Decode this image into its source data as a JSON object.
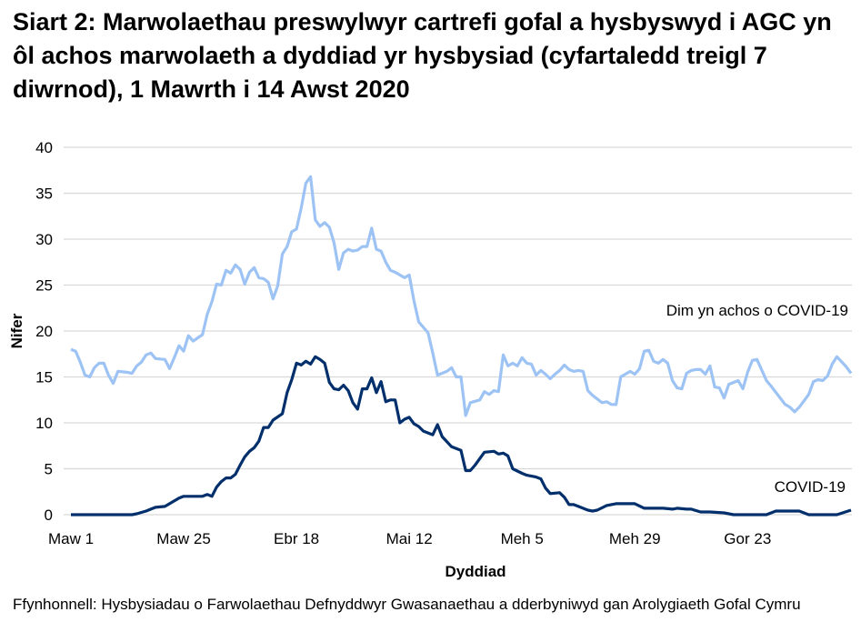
{
  "title": "Siart 2: Marwolaethau preswylwyr cartrefi gofal a hysbyswyd i AGC yn ôl achos marwolaeth a dyddiad yr hysbysiad (cyfartaledd treigl 7 diwrnod), 1 Mawrth i 14 Awst 2020",
  "source": "Ffynhonnell: Hysbysiadau o Farwolaethau Defnyddwyr Gwasanaethau a dderbyniwyd gan Arolygiaeth Gofal Cymru",
  "chart_data": {
    "type": "line",
    "title": "Siart 2: Marwolaethau preswylwyr cartrefi gofal a hysbyswyd i AGC yn ôl achos marwolaeth a dyddiad yr hysbysiad (cyfartaledd treigl 7 diwrnod), 1 Mawrth i 14 Awst 2020",
    "xlabel": "Dyddiad",
    "ylabel": "Nifer",
    "xlim": [
      "2020-03-01",
      "2020-08-14"
    ],
    "ylim": [
      0,
      40
    ],
    "yticks": [
      0,
      5,
      10,
      15,
      20,
      25,
      30,
      35,
      40
    ],
    "xticks": [
      {
        "date": "2020-03-01",
        "label": "Maw 1"
      },
      {
        "date": "2020-03-25",
        "label": "Maw 25"
      },
      {
        "date": "2020-04-18",
        "label": "Ebr 18"
      },
      {
        "date": "2020-05-12",
        "label": "Mai 12"
      },
      {
        "date": "2020-06-05",
        "label": "Meh 5"
      },
      {
        "date": "2020-06-29",
        "label": "Meh 29"
      },
      {
        "date": "2020-07-23",
        "label": "Gor 23"
      }
    ],
    "grid": "horizontal",
    "legend": "inline labels at right end of lines",
    "series": [
      {
        "name": "Dim yn achos o COVID-19",
        "color": "#9dc3f5",
        "points": [
          [
            "2020-03-01",
            18.0
          ],
          [
            "2020-03-02",
            17.8
          ],
          [
            "2020-03-03",
            16.6
          ],
          [
            "2020-03-04",
            15.2
          ],
          [
            "2020-03-05",
            15.0
          ],
          [
            "2020-03-06",
            16.0
          ],
          [
            "2020-03-07",
            16.5
          ],
          [
            "2020-03-08",
            16.5
          ],
          [
            "2020-03-09",
            15.2
          ],
          [
            "2020-03-10",
            14.3
          ],
          [
            "2020-03-11",
            15.6
          ],
          [
            "2020-03-13",
            15.5
          ],
          [
            "2020-03-14",
            15.4
          ],
          [
            "2020-03-15",
            16.2
          ],
          [
            "2020-03-16",
            16.6
          ],
          [
            "2020-03-17",
            17.4
          ],
          [
            "2020-03-18",
            17.6
          ],
          [
            "2020-03-19",
            17.0
          ],
          [
            "2020-03-21",
            16.9
          ],
          [
            "2020-03-22",
            15.9
          ],
          [
            "2020-03-23",
            17.1
          ],
          [
            "2020-03-24",
            18.4
          ],
          [
            "2020-03-25",
            17.8
          ],
          [
            "2020-03-26",
            19.5
          ],
          [
            "2020-03-27",
            18.9
          ],
          [
            "2020-03-29",
            19.6
          ],
          [
            "2020-03-30",
            21.8
          ],
          [
            "2020-03-31",
            23.2
          ],
          [
            "2020-04-01",
            25.1
          ],
          [
            "2020-04-02",
            25.0
          ],
          [
            "2020-04-03",
            26.6
          ],
          [
            "2020-04-04",
            26.3
          ],
          [
            "2020-04-05",
            27.2
          ],
          [
            "2020-04-06",
            26.7
          ],
          [
            "2020-04-07",
            25.1
          ],
          [
            "2020-04-08",
            26.4
          ],
          [
            "2020-04-09",
            26.9
          ],
          [
            "2020-04-10",
            25.8
          ],
          [
            "2020-04-11",
            25.7
          ],
          [
            "2020-04-12",
            25.3
          ],
          [
            "2020-04-13",
            23.5
          ],
          [
            "2020-04-14",
            24.9
          ],
          [
            "2020-04-15",
            28.4
          ],
          [
            "2020-04-16",
            29.2
          ],
          [
            "2020-04-17",
            30.8
          ],
          [
            "2020-04-18",
            31.1
          ],
          [
            "2020-04-19",
            33.4
          ],
          [
            "2020-04-20",
            36.1
          ],
          [
            "2020-04-21",
            36.8
          ],
          [
            "2020-04-22",
            32.1
          ],
          [
            "2020-04-23",
            31.4
          ],
          [
            "2020-04-24",
            31.8
          ],
          [
            "2020-04-25",
            31.3
          ],
          [
            "2020-04-26",
            29.6
          ],
          [
            "2020-04-27",
            26.7
          ],
          [
            "2020-04-28",
            28.5
          ],
          [
            "2020-04-29",
            28.9
          ],
          [
            "2020-04-30",
            28.7
          ],
          [
            "2020-05-01",
            28.8
          ],
          [
            "2020-05-02",
            29.2
          ],
          [
            "2020-05-03",
            29.2
          ],
          [
            "2020-05-04",
            31.2
          ],
          [
            "2020-05-05",
            28.9
          ],
          [
            "2020-05-06",
            28.7
          ],
          [
            "2020-05-07",
            27.5
          ],
          [
            "2020-05-08",
            26.6
          ],
          [
            "2020-05-09",
            26.4
          ],
          [
            "2020-05-11",
            25.8
          ],
          [
            "2020-05-12",
            26.1
          ],
          [
            "2020-05-13",
            23.3
          ],
          [
            "2020-05-14",
            21.0
          ],
          [
            "2020-05-15",
            20.4
          ],
          [
            "2020-05-16",
            19.8
          ],
          [
            "2020-05-17",
            17.6
          ],
          [
            "2020-05-18",
            15.2
          ],
          [
            "2020-05-20",
            15.6
          ],
          [
            "2020-05-21",
            16.0
          ],
          [
            "2020-05-22",
            15.0
          ],
          [
            "2020-05-23",
            15.0
          ],
          [
            "2020-05-24",
            10.8
          ],
          [
            "2020-05-25",
            12.2
          ],
          [
            "2020-05-27",
            12.5
          ],
          [
            "2020-05-28",
            13.4
          ],
          [
            "2020-05-29",
            13.1
          ],
          [
            "2020-05-30",
            13.5
          ],
          [
            "2020-05-31",
            13.4
          ],
          [
            "2020-06-01",
            17.4
          ],
          [
            "2020-06-02",
            16.2
          ],
          [
            "2020-06-03",
            16.5
          ],
          [
            "2020-06-04",
            16.2
          ],
          [
            "2020-06-05",
            17.1
          ],
          [
            "2020-06-06",
            16.5
          ],
          [
            "2020-06-07",
            16.4
          ],
          [
            "2020-06-08",
            15.2
          ],
          [
            "2020-06-09",
            15.7
          ],
          [
            "2020-06-10",
            15.3
          ],
          [
            "2020-06-11",
            14.8
          ],
          [
            "2020-06-12",
            15.3
          ],
          [
            "2020-06-13",
            15.7
          ],
          [
            "2020-06-14",
            16.3
          ],
          [
            "2020-06-15",
            15.8
          ],
          [
            "2020-06-16",
            15.6
          ],
          [
            "2020-06-17",
            15.7
          ],
          [
            "2020-06-18",
            15.6
          ],
          [
            "2020-06-19",
            13.5
          ],
          [
            "2020-06-20",
            13.0
          ],
          [
            "2020-06-22",
            12.2
          ],
          [
            "2020-06-23",
            12.3
          ],
          [
            "2020-06-24",
            12.0
          ],
          [
            "2020-06-25",
            12.0
          ],
          [
            "2020-06-26",
            15.0
          ],
          [
            "2020-06-28",
            15.6
          ],
          [
            "2020-06-29",
            15.3
          ],
          [
            "2020-06-30",
            15.9
          ],
          [
            "2020-07-01",
            17.8
          ],
          [
            "2020-07-02",
            17.9
          ],
          [
            "2020-07-03",
            16.7
          ],
          [
            "2020-07-04",
            16.5
          ],
          [
            "2020-07-05",
            16.9
          ],
          [
            "2020-07-06",
            16.5
          ],
          [
            "2020-07-07",
            14.6
          ],
          [
            "2020-07-08",
            13.8
          ],
          [
            "2020-07-09",
            13.7
          ],
          [
            "2020-07-10",
            15.4
          ],
          [
            "2020-07-11",
            15.7
          ],
          [
            "2020-07-12",
            15.8
          ],
          [
            "2020-07-13",
            15.8
          ],
          [
            "2020-07-14",
            15.3
          ],
          [
            "2020-07-15",
            16.2
          ],
          [
            "2020-07-16",
            13.9
          ],
          [
            "2020-07-17",
            13.8
          ],
          [
            "2020-07-18",
            12.7
          ],
          [
            "2020-07-19",
            14.2
          ],
          [
            "2020-07-21",
            14.6
          ],
          [
            "2020-07-22",
            13.7
          ],
          [
            "2020-07-23",
            15.5
          ],
          [
            "2020-07-24",
            16.8
          ],
          [
            "2020-07-25",
            16.9
          ],
          [
            "2020-07-27",
            14.6
          ],
          [
            "2020-07-28",
            14.0
          ],
          [
            "2020-07-31",
            12.0
          ],
          [
            "2020-08-01",
            11.7
          ],
          [
            "2020-08-02",
            11.2
          ],
          [
            "2020-08-03",
            11.7
          ],
          [
            "2020-08-05",
            13.1
          ],
          [
            "2020-08-06",
            14.5
          ],
          [
            "2020-08-07",
            14.7
          ],
          [
            "2020-08-08",
            14.6
          ],
          [
            "2020-08-09",
            15.1
          ],
          [
            "2020-08-10",
            16.4
          ],
          [
            "2020-08-11",
            17.2
          ],
          [
            "2020-08-13",
            16.1
          ],
          [
            "2020-08-14",
            15.4
          ]
        ]
      },
      {
        "name": "COVID-19",
        "color": "#002f6c",
        "points": [
          [
            "2020-03-01",
            0.0
          ],
          [
            "2020-03-14",
            0.0
          ],
          [
            "2020-03-15",
            0.1
          ],
          [
            "2020-03-17",
            0.4
          ],
          [
            "2020-03-18",
            0.6
          ],
          [
            "2020-03-19",
            0.8
          ],
          [
            "2020-03-21",
            0.9
          ],
          [
            "2020-03-22",
            1.2
          ],
          [
            "2020-03-24",
            1.8
          ],
          [
            "2020-03-25",
            2.0
          ],
          [
            "2020-03-29",
            2.0
          ],
          [
            "2020-03-30",
            2.2
          ],
          [
            "2020-03-31",
            2.0
          ],
          [
            "2020-04-01",
            3.0
          ],
          [
            "2020-04-02",
            3.6
          ],
          [
            "2020-04-03",
            4.0
          ],
          [
            "2020-04-04",
            4.0
          ],
          [
            "2020-04-05",
            4.4
          ],
          [
            "2020-04-06",
            5.4
          ],
          [
            "2020-04-07",
            6.3
          ],
          [
            "2020-04-08",
            6.9
          ],
          [
            "2020-04-09",
            7.3
          ],
          [
            "2020-04-10",
            8.0
          ],
          [
            "2020-04-11",
            9.5
          ],
          [
            "2020-04-12",
            9.5
          ],
          [
            "2020-04-13",
            10.3
          ],
          [
            "2020-04-15",
            11.0
          ],
          [
            "2020-04-16",
            13.3
          ],
          [
            "2020-04-17",
            14.7
          ],
          [
            "2020-04-18",
            16.5
          ],
          [
            "2020-04-19",
            16.3
          ],
          [
            "2020-04-20",
            16.7
          ],
          [
            "2020-04-21",
            16.4
          ],
          [
            "2020-04-22",
            17.2
          ],
          [
            "2020-04-23",
            16.9
          ],
          [
            "2020-04-24",
            16.5
          ],
          [
            "2020-04-25",
            14.4
          ],
          [
            "2020-04-26",
            13.7
          ],
          [
            "2020-04-27",
            13.6
          ],
          [
            "2020-04-28",
            14.1
          ],
          [
            "2020-04-29",
            13.5
          ],
          [
            "2020-04-30",
            12.2
          ],
          [
            "2020-05-01",
            11.5
          ],
          [
            "2020-05-02",
            13.7
          ],
          [
            "2020-05-03",
            13.7
          ],
          [
            "2020-05-04",
            14.9
          ],
          [
            "2020-05-05",
            13.3
          ],
          [
            "2020-05-06",
            14.5
          ],
          [
            "2020-05-07",
            12.3
          ],
          [
            "2020-05-08",
            12.5
          ],
          [
            "2020-05-09",
            12.5
          ],
          [
            "2020-05-10",
            10.0
          ],
          [
            "2020-05-11",
            10.4
          ],
          [
            "2020-05-12",
            10.6
          ],
          [
            "2020-05-13",
            9.9
          ],
          [
            "2020-05-14",
            9.6
          ],
          [
            "2020-05-15",
            9.1
          ],
          [
            "2020-05-17",
            8.7
          ],
          [
            "2020-05-18",
            9.8
          ],
          [
            "2020-05-19",
            8.5
          ],
          [
            "2020-05-21",
            7.4
          ],
          [
            "2020-05-23",
            7.0
          ],
          [
            "2020-05-24",
            4.8
          ],
          [
            "2020-05-25",
            4.8
          ],
          [
            "2020-05-26",
            5.4
          ],
          [
            "2020-05-28",
            6.8
          ],
          [
            "2020-05-30",
            6.9
          ],
          [
            "2020-05-31",
            6.6
          ],
          [
            "2020-06-01",
            6.7
          ],
          [
            "2020-06-02",
            6.4
          ],
          [
            "2020-06-03",
            5.0
          ],
          [
            "2020-06-05",
            4.5
          ],
          [
            "2020-06-06",
            4.3
          ],
          [
            "2020-06-08",
            4.1
          ],
          [
            "2020-06-09",
            3.9
          ],
          [
            "2020-06-10",
            2.9
          ],
          [
            "2020-06-11",
            2.3
          ],
          [
            "2020-06-13",
            2.4
          ],
          [
            "2020-06-14",
            1.9
          ],
          [
            "2020-06-15",
            1.1
          ],
          [
            "2020-06-16",
            1.1
          ],
          [
            "2020-06-17",
            0.9
          ],
          [
            "2020-06-19",
            0.5
          ],
          [
            "2020-06-20",
            0.4
          ],
          [
            "2020-06-21",
            0.5
          ],
          [
            "2020-06-23",
            1.0
          ],
          [
            "2020-06-25",
            1.2
          ],
          [
            "2020-06-29",
            1.2
          ],
          [
            "2020-07-01",
            0.7
          ],
          [
            "2020-07-05",
            0.7
          ],
          [
            "2020-07-07",
            0.6
          ],
          [
            "2020-07-08",
            0.7
          ],
          [
            "2020-07-10",
            0.6
          ],
          [
            "2020-07-11",
            0.6
          ],
          [
            "2020-07-13",
            0.3
          ],
          [
            "2020-07-15",
            0.3
          ],
          [
            "2020-07-18",
            0.2
          ],
          [
            "2020-07-20",
            0.0
          ],
          [
            "2020-07-27",
            0.0
          ],
          [
            "2020-07-29",
            0.4
          ],
          [
            "2020-08-03",
            0.4
          ],
          [
            "2020-08-05",
            0.0
          ],
          [
            "2020-08-11",
            0.0
          ],
          [
            "2020-08-14",
            0.5
          ]
        ]
      }
    ]
  }
}
